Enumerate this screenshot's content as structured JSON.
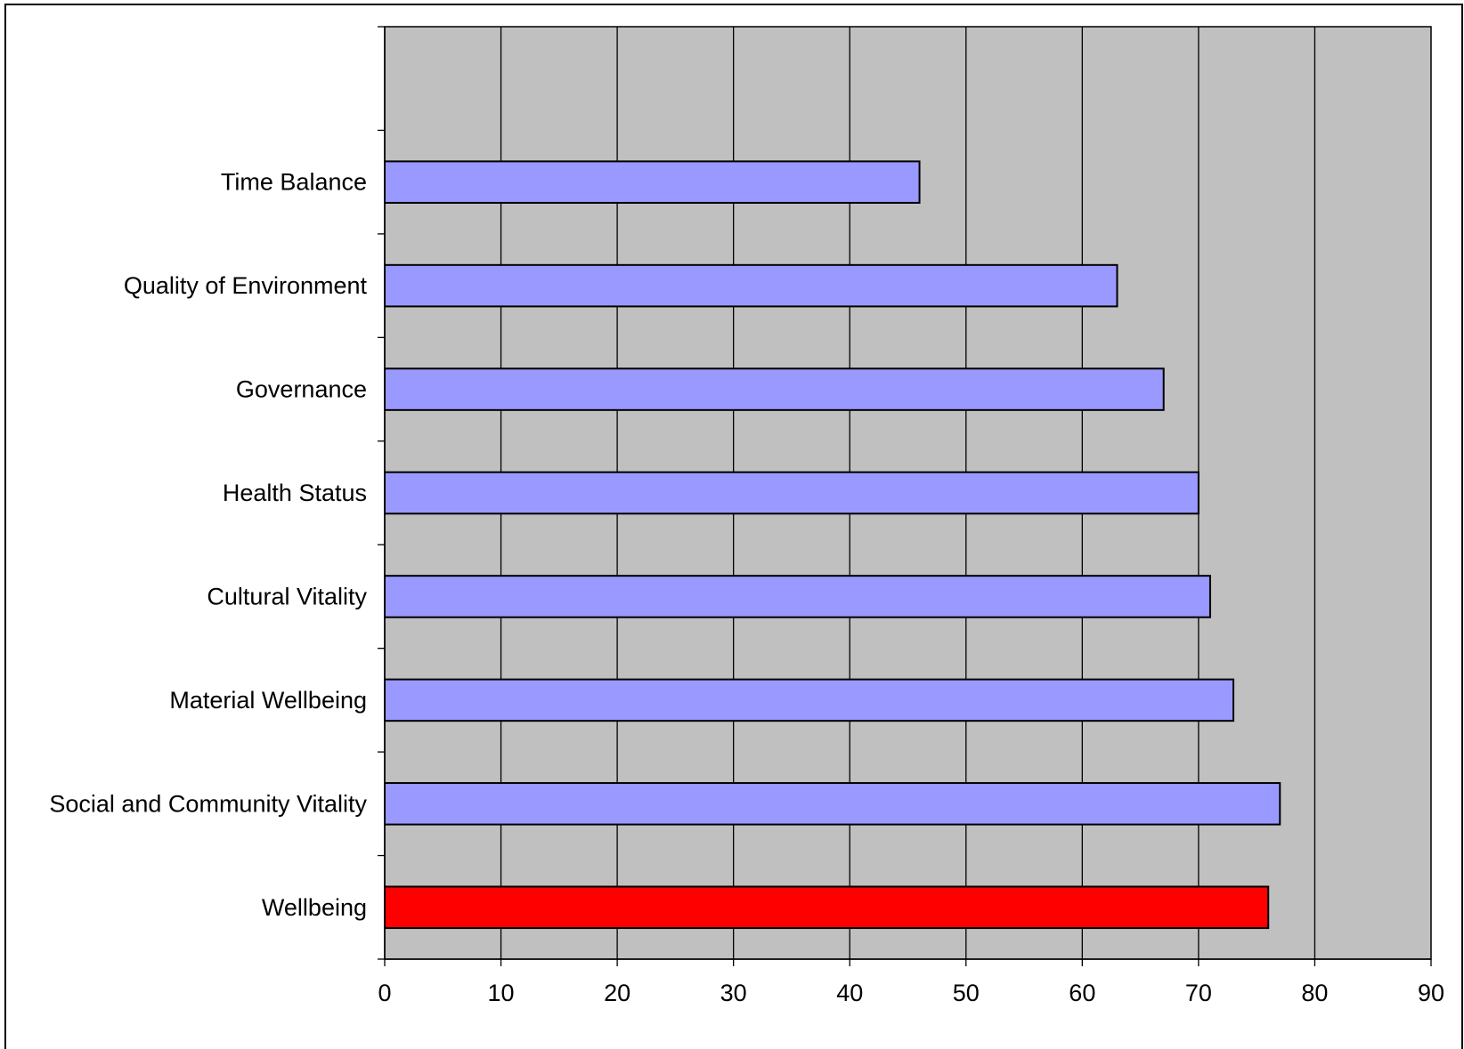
{
  "chart_data": {
    "type": "bar",
    "orientation": "horizontal",
    "categories": [
      "Time Balance",
      "Quality of Environment",
      "Governance",
      "Health Status",
      "Cultural Vitality",
      "Material Wellbeing",
      "Social and Community Vitality",
      "Wellbeing"
    ],
    "values": [
      46,
      63,
      67,
      70,
      71,
      73,
      77,
      76
    ],
    "bar_colors": [
      "#9999ff",
      "#9999ff",
      "#9999ff",
      "#9999ff",
      "#9999ff",
      "#9999ff",
      "#9999ff",
      "#ff0000"
    ],
    "empty_slots_at_top": 1,
    "xlim": [
      0,
      90
    ],
    "xticks": [
      "0",
      "10",
      "20",
      "30",
      "40",
      "50",
      "60",
      "70",
      "80",
      "90"
    ],
    "title": "",
    "xlabel": "",
    "ylabel": "",
    "grid": "vertical",
    "legend": "none",
    "colors": {
      "plot_background": "#c0c0c0",
      "gridline": "#000000",
      "bar_outline": "#000000",
      "page_background": "#ffffff"
    }
  }
}
